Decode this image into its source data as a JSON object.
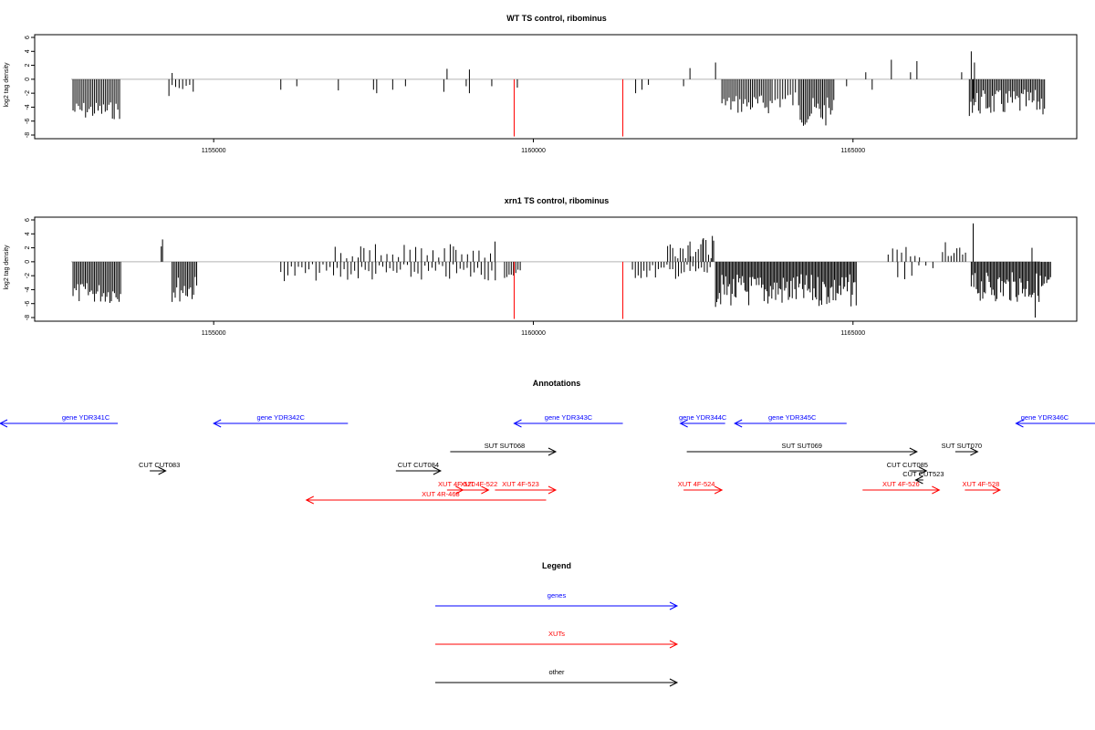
{
  "chart_data": [
    {
      "type": "bar",
      "panel": "wt",
      "title": "WT TS control, ribominus",
      "ylabel": "log2 tag density",
      "ylim": [
        -8,
        6
      ],
      "yticks": [
        -8,
        -6,
        -4,
        -2,
        0,
        2,
        4,
        6
      ],
      "xlim": [
        1152200,
        1168500
      ],
      "xticks": [
        1155000,
        1160000,
        1165000
      ],
      "colors": {
        "signal": "#000000",
        "highlight": "#ff0000",
        "baseline": "#b4b4b4"
      },
      "clusters": [
        {
          "from": 1152800,
          "to": 1153550,
          "sign": -1,
          "min": 3.2,
          "max": 5.8,
          "step": 28
        },
        {
          "from": 1154350,
          "to": 1154700,
          "sign": -1,
          "min": 0.6,
          "max": 1.8,
          "step": 55
        },
        {
          "from": 1162950,
          "to": 1163750,
          "sign": -1,
          "min": 2.2,
          "max": 5.0,
          "step": 28
        },
        {
          "from": 1163780,
          "to": 1164100,
          "sign": -1,
          "min": 1.5,
          "max": 4.5,
          "step": 40
        },
        {
          "from": 1164150,
          "to": 1164700,
          "sign": -1,
          "min": 2.6,
          "max": 6.8,
          "step": 25
        },
        {
          "from": 1166820,
          "to": 1168000,
          "sign": -1,
          "min": 1.5,
          "max": 5.3,
          "step": 24
        }
      ],
      "bars": [
        {
          "x": 1154350,
          "y": 0.9
        },
        {
          "x": 1154300,
          "y": -2.4
        },
        {
          "x": 1156050,
          "y": -1.5
        },
        {
          "x": 1156300,
          "y": -1.0
        },
        {
          "x": 1156950,
          "y": -1.6
        },
        {
          "x": 1157500,
          "y": -1.5
        },
        {
          "x": 1157550,
          "y": -2.0
        },
        {
          "x": 1157800,
          "y": -1.5
        },
        {
          "x": 1158000,
          "y": -1.0
        },
        {
          "x": 1158600,
          "y": -1.8
        },
        {
          "x": 1158650,
          "y": 1.5
        },
        {
          "x": 1158950,
          "y": -1.0
        },
        {
          "x": 1159000,
          "y": -2.0
        },
        {
          "x": 1159000,
          "y": 1.4
        },
        {
          "x": 1159350,
          "y": -1.0
        },
        {
          "x": 1159750,
          "y": -1.2
        },
        {
          "x": 1161600,
          "y": -2.0
        },
        {
          "x": 1161700,
          "y": -1.5
        },
        {
          "x": 1161800,
          "y": -0.8
        },
        {
          "x": 1162350,
          "y": -1.0
        },
        {
          "x": 1162450,
          "y": 1.6
        },
        {
          "x": 1162850,
          "y": 2.4
        },
        {
          "x": 1164900,
          "y": -1.0
        },
        {
          "x": 1165200,
          "y": 1.0
        },
        {
          "x": 1165300,
          "y": -1.5
        },
        {
          "x": 1165600,
          "y": 2.8
        },
        {
          "x": 1165900,
          "y": 1.0
        },
        {
          "x": 1166000,
          "y": 2.6
        },
        {
          "x": 1166700,
          "y": 1.0
        },
        {
          "x": 1166850,
          "y": 4.0
        },
        {
          "x": 1166900,
          "y": 2.4
        },
        {
          "x": 1166880,
          "y": -2.8
        }
      ],
      "highlight_bars": [
        {
          "x": 1159700,
          "y": -8.2
        },
        {
          "x": 1161400,
          "y": -8.2
        }
      ]
    },
    {
      "type": "bar",
      "panel": "xrn1",
      "title": "xrn1 TS control, ribominus",
      "ylabel": "log2 tag density",
      "ylim": [
        -8,
        6
      ],
      "yticks": [
        -8,
        -6,
        -4,
        -2,
        0,
        2,
        4,
        6
      ],
      "xlim": [
        1152200,
        1168500
      ],
      "xticks": [
        1155000,
        1160000,
        1165000
      ],
      "colors": {
        "signal": "#000000",
        "highlight": "#ff0000",
        "baseline": "#b4b4b4"
      },
      "clusters": [
        {
          "from": 1152800,
          "to": 1153550,
          "sign": -1,
          "min": 3.0,
          "max": 6.0,
          "step": 24
        },
        {
          "from": 1154350,
          "to": 1154750,
          "sign": -1,
          "min": 2.0,
          "max": 5.8,
          "step": 24
        },
        {
          "from": 1156050,
          "to": 1159450,
          "sign": -1,
          "min": 0.3,
          "max": 2.8,
          "step": 55
        },
        {
          "from": 1156900,
          "to": 1159400,
          "sign": 1,
          "min": 0.3,
          "max": 2.6,
          "step": 90
        },
        {
          "from": 1159550,
          "to": 1159800,
          "sign": -1,
          "min": 1.0,
          "max": 2.6,
          "step": 35
        },
        {
          "from": 1161550,
          "to": 1162800,
          "sign": -1,
          "min": 0.3,
          "max": 2.5,
          "step": 45
        },
        {
          "from": 1162100,
          "to": 1162850,
          "sign": 1,
          "min": 0.5,
          "max": 3.5,
          "step": 40
        },
        {
          "from": 1162850,
          "to": 1165050,
          "sign": -1,
          "min": 1.8,
          "max": 6.5,
          "step": 20
        },
        {
          "from": 1165550,
          "to": 1166050,
          "sign": 1,
          "min": 0.6,
          "max": 2.4,
          "step": 70
        },
        {
          "from": 1165700,
          "to": 1166300,
          "sign": -1,
          "min": 0.5,
          "max": 2.8,
          "step": 110
        },
        {
          "from": 1166400,
          "to": 1166800,
          "sign": 1,
          "min": 0.8,
          "max": 2.8,
          "step": 45
        },
        {
          "from": 1166850,
          "to": 1168100,
          "sign": -1,
          "min": 1.5,
          "max": 5.8,
          "step": 20
        }
      ],
      "bars": [
        {
          "x": 1154200,
          "y": 3.2
        },
        {
          "x": 1154180,
          "y": 2.2
        },
        {
          "x": 1158750,
          "y": 2.2
        },
        {
          "x": 1159400,
          "y": 2.9
        },
        {
          "x": 1157300,
          "y": 2.2
        },
        {
          "x": 1162800,
          "y": 3.7
        },
        {
          "x": 1162650,
          "y": 3.2
        },
        {
          "x": 1162450,
          "y": 2.9
        },
        {
          "x": 1166880,
          "y": 5.5
        },
        {
          "x": 1167800,
          "y": 2.0
        },
        {
          "x": 1167850,
          "y": -8.0
        }
      ],
      "highlight_bars": [
        {
          "x": 1159700,
          "y": -8.2
        },
        {
          "x": 1161400,
          "y": -8.2
        }
      ]
    }
  ],
  "annotations": {
    "title": "Annotations",
    "xlim": [
      1152200,
      1168500
    ],
    "items": [
      {
        "label": "gene YDR341C",
        "type": "gene",
        "row": 0,
        "x1": 1153500,
        "x2": 1151400,
        "labelAt": 1153000
      },
      {
        "label": "gene YDR342C",
        "type": "gene",
        "row": 0,
        "x1": 1157100,
        "x2": 1155000,
        "labelAt": 1156050
      },
      {
        "label": "gene YDR343C",
        "type": "gene",
        "row": 0,
        "x1": 1161400,
        "x2": 1159700,
        "labelAt": 1160550
      },
      {
        "label": "gene YDR344C",
        "type": "gene",
        "row": 0,
        "x1": 1163000,
        "x2": 1162300,
        "labelAt": 1162650
      },
      {
        "label": "gene YDR345C",
        "type": "gene",
        "row": 0,
        "x1": 1164900,
        "x2": 1163150,
        "labelAt": 1164050
      },
      {
        "label": "gene YDR346C",
        "type": "gene",
        "row": 0,
        "x1": 1169500,
        "x2": 1167550,
        "labelAt": 1168000
      },
      {
        "label": "SUT SUT068",
        "type": "other",
        "row": 1,
        "x1": 1158700,
        "x2": 1160350,
        "labelAt": 1159550
      },
      {
        "label": "SUT SUT069",
        "type": "other",
        "row": 1,
        "x1": 1162400,
        "x2": 1166000,
        "labelAt": 1164200
      },
      {
        "label": "SUT SUT070",
        "type": "other",
        "row": 1,
        "x1": 1166600,
        "x2": 1166950,
        "labelAt": 1166700
      },
      {
        "label": "CUT CUT083",
        "type": "other",
        "row": 2,
        "x1": 1154000,
        "x2": 1154250,
        "labelAt": 1154150
      },
      {
        "label": "CUT CUT084",
        "type": "other",
        "row": 2,
        "x1": 1157850,
        "x2": 1158550,
        "labelAt": 1158200
      },
      {
        "label": "CUT CUT085",
        "type": "other",
        "row": 2,
        "x1": 1165880,
        "x2": 1166150,
        "labelAt": 1165850
      },
      {
        "label": "CUT CUT523",
        "type": "other",
        "row": 3,
        "x1": 1166100,
        "x2": 1165980,
        "labelAt": 1166100
      },
      {
        "label": "XUT 4F-520",
        "type": "xut",
        "row": 4,
        "x1": 1158650,
        "x2": 1158900,
        "labelAt": 1158800
      },
      {
        "label": "XUT 4F-522",
        "type": "xut",
        "row": 4,
        "x1": 1158900,
        "x2": 1159300,
        "labelAt": 1159150
      },
      {
        "label": "XUT 4F-523",
        "type": "xut",
        "row": 4,
        "x1": 1159400,
        "x2": 1160350,
        "labelAt": 1159800
      },
      {
        "label": "XUT 4F-524",
        "type": "xut",
        "row": 4,
        "x1": 1162350,
        "x2": 1162950,
        "labelAt": 1162550
      },
      {
        "label": "XUT 4F-526",
        "type": "xut",
        "row": 4,
        "x1": 1165150,
        "x2": 1166350,
        "labelAt": 1165750
      },
      {
        "label": "XUT 4F-528",
        "type": "xut",
        "row": 4,
        "x1": 1166750,
        "x2": 1167300,
        "labelAt": 1167000
      },
      {
        "label": "XUT 4R-468",
        "type": "xut",
        "row": 5,
        "x1": 1160200,
        "x2": 1156450,
        "labelAt": 1158550
      }
    ]
  },
  "legend": {
    "title": "Legend",
    "items": [
      {
        "label": "genes",
        "type": "gene"
      },
      {
        "label": "XUTs",
        "type": "xut"
      },
      {
        "label": "other",
        "type": "other"
      }
    ]
  },
  "colors": {
    "gene": "#0000ff",
    "xut": "#ff0000",
    "other": "#000000"
  }
}
